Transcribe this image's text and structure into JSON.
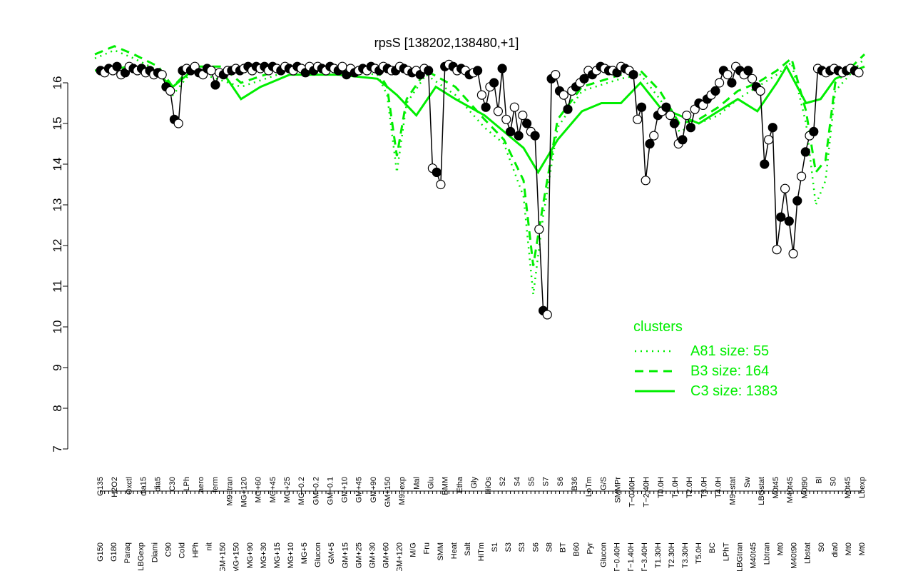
{
  "chart_data": {
    "type": "line",
    "title": "rpsS [138202,138480,+1]",
    "xlabel": "",
    "ylabel": "",
    "ylim": [
      7,
      17
    ],
    "yticks": [
      7,
      8,
      9,
      10,
      11,
      12,
      13,
      14,
      15,
      16
    ],
    "grid": false,
    "legend": {
      "title": "clusters",
      "placement": "bottom-right",
      "color": "#00ee00",
      "entries": [
        {
          "label": "A81 size: 55",
          "style": "dotted"
        },
        {
          "label": "B3 size: 164",
          "style": "dashed"
        },
        {
          "label": "C3 size: 1383",
          "style": "solid"
        }
      ]
    },
    "x_tick_labels_upper": [
      "G135",
      "H2O2",
      "Oxctl",
      "dia15",
      "dia5",
      "C30",
      "LPh",
      "aero",
      "ferm",
      "M9−tran",
      "MG+120",
      "MG+60",
      "MG+45",
      "MG+25",
      "MG−0.2",
      "GM−0.2",
      "GM−0.1",
      "GM+10",
      "GM+45",
      "GM+90",
      "GM+150",
      "M9−exp",
      "Mal",
      "Glu",
      "BMM",
      "Etha",
      "Gly",
      "HiOs",
      "S2",
      "S4",
      "S5",
      "S7",
      "S6",
      "B36",
      "LoTm",
      "G/S",
      "SMMPr",
      "T−0.40H",
      "T−2.40H",
      "T0.0H",
      "T1.0H",
      "T2.0H",
      "T3.0H",
      "T4.0H",
      "M9−stat",
      "Sw",
      "LBGstat",
      "M0t45",
      "M40t45",
      "M0t90",
      "Bl",
      "S0",
      "M0t45",
      "Lbexp"
    ],
    "x_tick_labels_lower": [
      "G150",
      "G180",
      "Paraq",
      "LBGexp",
      "Diami",
      "C90",
      "Cold",
      "HPh",
      "nit",
      "GM+150",
      "MG+150",
      "MG+90",
      "MG+30",
      "MG+15",
      "MG+10",
      "MG+5",
      "Glucon",
      "GM+5",
      "GM+15",
      "GM+25",
      "GM+30",
      "GM+60",
      "GM+120",
      "M/G",
      "Fru",
      "SMM",
      "Heat",
      "Salt",
      "HiTm",
      "S1",
      "S3",
      "S3",
      "S6",
      "S8",
      "BT",
      "B60",
      "Pyr",
      "Glucon",
      "T−0.40H",
      "T−1.40H",
      "T−3.40H",
      "T1.30H",
      "T2.30H",
      "T3.30H",
      "T5.0H",
      "BC",
      "LPhT",
      "LBGtran",
      "M40t45",
      "Lbtran",
      "Mt0",
      "M40t90",
      "Lbstat",
      "S0",
      "dia0",
      "Mt0",
      "Mt0"
    ],
    "cluster_lines": {
      "color": "#00ee00",
      "series": [
        {
          "name": "C3 size: 1383",
          "style": "solid",
          "points": [
            [
              0,
              16.3
            ],
            [
              8,
              16.4
            ],
            [
              13,
              16.2
            ],
            [
              16,
              15.9
            ],
            [
              20,
              16.3
            ],
            [
              26,
              16.3
            ],
            [
              30,
              15.6
            ],
            [
              34,
              15.9
            ],
            [
              40,
              16.2
            ],
            [
              50,
              16.2
            ],
            [
              58,
              16.1
            ],
            [
              62,
              15.7
            ],
            [
              66,
              15.2
            ],
            [
              70,
              15.9
            ],
            [
              74,
              15.6
            ],
            [
              80,
              15.2
            ],
            [
              84,
              14.8
            ],
            [
              88,
              14.4
            ],
            [
              91,
              13.8
            ],
            [
              95,
              14.6
            ],
            [
              100,
              15.3
            ],
            [
              104,
              15.5
            ],
            [
              108,
              15.5
            ],
            [
              112,
              16.0
            ],
            [
              116,
              15.4
            ],
            [
              120,
              15.2
            ],
            [
              124,
              15.0
            ],
            [
              128,
              15.3
            ],
            [
              132,
              15.6
            ],
            [
              136,
              15.3
            ],
            [
              140,
              16.0
            ],
            [
              142,
              16.4
            ],
            [
              146,
              15.5
            ],
            [
              149,
              15.6
            ],
            [
              152,
              16.1
            ],
            [
              158,
              16.4
            ]
          ]
        },
        {
          "name": "B3 size: 164",
          "style": "dashed",
          "points": [
            [
              0,
              16.7
            ],
            [
              4,
              16.9
            ],
            [
              8,
              16.7
            ],
            [
              13,
              16.4
            ],
            [
              16,
              15.9
            ],
            [
              20,
              16.4
            ],
            [
              26,
              16.4
            ],
            [
              30,
              16.0
            ],
            [
              40,
              16.4
            ],
            [
              50,
              16.4
            ],
            [
              58,
              16.3
            ],
            [
              60,
              15.9
            ],
            [
              62,
              14.2
            ],
            [
              64,
              15.6
            ],
            [
              68,
              16.3
            ],
            [
              74,
              15.9
            ],
            [
              80,
              15.1
            ],
            [
              84,
              14.6
            ],
            [
              88,
              13.6
            ],
            [
              90,
              11.5
            ],
            [
              92,
              13.0
            ],
            [
              95,
              15.1
            ],
            [
              100,
              15.9
            ],
            [
              108,
              16.2
            ],
            [
              112,
              16.3
            ],
            [
              116,
              15.8
            ],
            [
              120,
              15.0
            ],
            [
              124,
              15.1
            ],
            [
              128,
              15.4
            ],
            [
              132,
              15.8
            ],
            [
              136,
              16.0
            ],
            [
              140,
              16.3
            ],
            [
              143,
              16.6
            ],
            [
              146,
              15.3
            ],
            [
              148,
              13.8
            ],
            [
              150,
              14.1
            ],
            [
              152,
              16.0
            ],
            [
              158,
              16.7
            ]
          ]
        },
        {
          "name": "A81 size: 55",
          "style": "dotted",
          "points": [
            [
              0,
              16.6
            ],
            [
              4,
              16.8
            ],
            [
              8,
              16.6
            ],
            [
              13,
              16.3
            ],
            [
              16,
              15.7
            ],
            [
              20,
              16.3
            ],
            [
              30,
              15.9
            ],
            [
              40,
              16.3
            ],
            [
              50,
              16.3
            ],
            [
              58,
              16.2
            ],
            [
              60,
              15.7
            ],
            [
              62,
              13.8
            ],
            [
              64,
              15.5
            ],
            [
              68,
              16.2
            ],
            [
              74,
              15.7
            ],
            [
              80,
              14.9
            ],
            [
              84,
              14.5
            ],
            [
              88,
              13.2
            ],
            [
              90,
              10.8
            ],
            [
              92,
              12.7
            ],
            [
              95,
              14.9
            ],
            [
              100,
              15.8
            ],
            [
              108,
              16.1
            ],
            [
              112,
              16.2
            ],
            [
              116,
              15.6
            ],
            [
              120,
              14.8
            ],
            [
              124,
              15.0
            ],
            [
              128,
              15.2
            ],
            [
              132,
              15.6
            ],
            [
              136,
              15.9
            ],
            [
              140,
              16.2
            ],
            [
              143,
              16.5
            ],
            [
              146,
              15.0
            ],
            [
              148,
              13.0
            ],
            [
              150,
              13.6
            ],
            [
              152,
              15.8
            ],
            [
              158,
              16.6
            ]
          ]
        }
      ]
    },
    "expression_points": [
      16.3,
      16.25,
      16.35,
      16.3,
      16.4,
      16.2,
      16.25,
      16.4,
      16.35,
      16.3,
      16.35,
      16.25,
      16.3,
      16.2,
      16.25,
      16.2,
      15.9,
      15.8,
      15.1,
      15.0,
      16.3,
      16.35,
      16.3,
      16.4,
      16.25,
      16.2,
      16.35,
      16.3,
      15.95,
      16.25,
      16.2,
      16.3,
      16.3,
      16.35,
      16.3,
      16.35,
      16.4,
      16.3,
      16.4,
      16.35,
      16.4,
      16.3,
      16.4,
      16.35,
      16.3,
      16.4,
      16.35,
      16.3,
      16.4,
      16.35,
      16.25,
      16.4,
      16.3,
      16.4,
      16.35,
      16.3,
      16.4,
      16.35,
      16.3,
      16.4,
      16.2,
      16.35,
      16.25,
      16.3,
      16.35,
      16.3,
      16.4,
      16.35,
      16.3,
      16.4,
      16.35,
      16.3,
      16.3,
      16.4,
      16.35,
      16.3,
      16.25,
      16.3,
      16.2,
      16.35,
      16.3,
      13.9,
      13.8,
      13.5,
      16.4,
      16.45,
      16.4,
      16.3,
      16.35,
      16.3,
      16.2,
      16.25,
      16.3,
      15.7,
      15.4,
      15.9,
      16.0,
      15.3,
      16.35,
      15.1,
      14.8,
      15.4,
      14.7,
      15.2,
      15.0,
      14.8,
      14.7,
      12.4,
      10.4,
      10.3,
      16.1,
      16.2,
      15.8,
      15.7,
      15.35,
      15.8,
      15.9,
      16.0,
      16.1,
      16.3,
      16.2,
      16.3,
      16.4,
      16.35,
      16.3,
      16.3,
      16.25,
      16.4,
      16.35,
      16.3,
      16.2,
      15.1,
      15.4,
      13.6,
      14.5,
      14.7,
      15.2,
      15.3,
      15.4,
      15.2,
      15.0,
      14.5,
      14.6,
      15.2,
      14.9,
      15.35,
      15.5,
      15.45,
      15.6,
      15.7,
      15.8,
      16.0,
      16.3,
      16.2,
      16.0,
      16.4,
      16.3,
      16.2,
      16.3,
      16.1,
      15.9,
      15.8,
      14.0,
      14.6,
      14.9,
      11.9,
      12.7,
      13.4,
      12.6,
      11.8,
      13.1,
      13.7,
      14.3,
      14.7,
      14.8,
      16.35,
      16.3,
      16.25,
      16.3,
      16.35,
      16.3,
      16.25,
      16.3,
      16.35,
      16.3,
      16.25
    ]
  }
}
